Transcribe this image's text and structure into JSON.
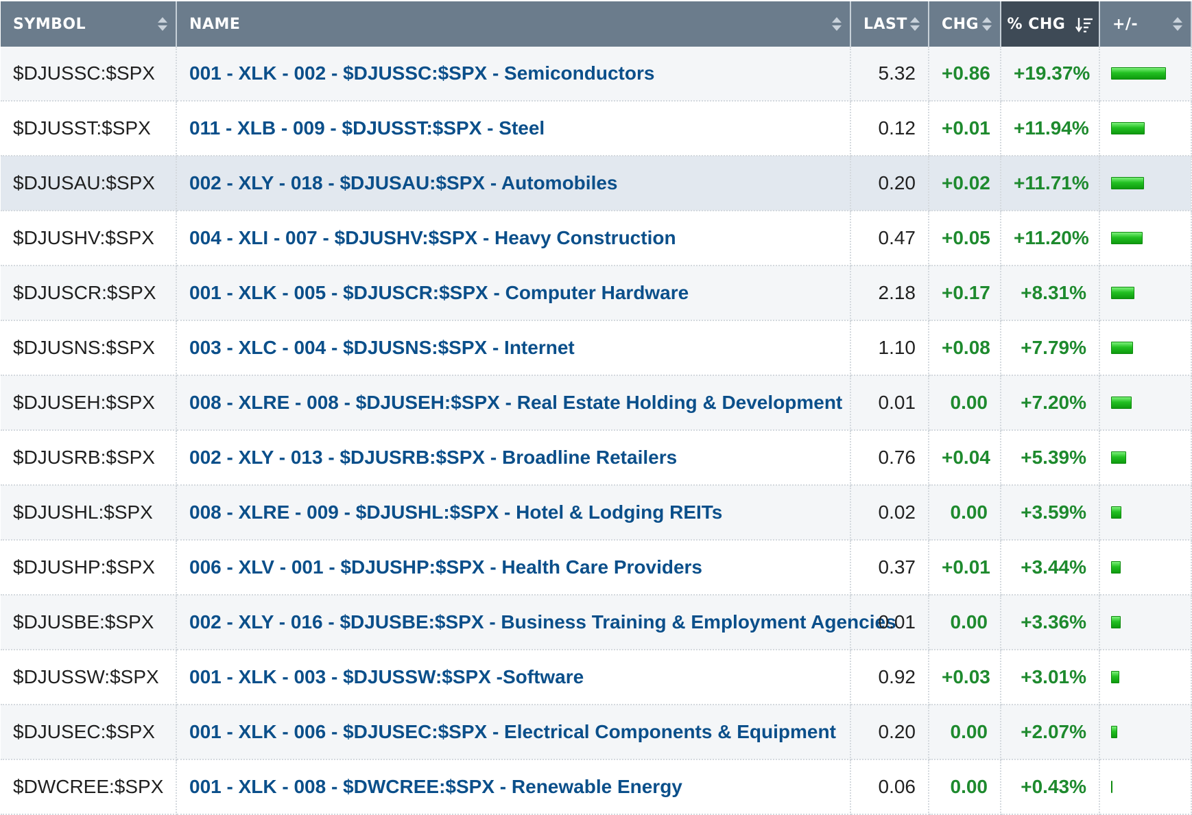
{
  "headers": {
    "symbol": "SYMBOL",
    "name": "NAME",
    "last": "LAST",
    "chg": "CHG",
    "pct_chg": "% CHG",
    "plus_minus": "+/-"
  },
  "colors": {
    "header_bg": "#6b7c8c",
    "header_sorted_bg": "#3e4a56",
    "link": "#0b4f8a",
    "positive": "#1e8a2e",
    "bar_green": "#22c022"
  },
  "rows": [
    {
      "symbol": "$DJUSSC:$SPX",
      "name": "001 - XLK - 002 - $DJUSSC:$SPX - Semiconductors",
      "last": "5.32",
      "chg": "+0.86",
      "pct": "+19.37%",
      "bar_pct": 19.37
    },
    {
      "symbol": "$DJUSST:$SPX",
      "name": "011 - XLB - 009 - $DJUSST:$SPX - Steel",
      "last": "0.12",
      "chg": "+0.01",
      "pct": "+11.94%",
      "bar_pct": 11.94
    },
    {
      "symbol": "$DJUSAU:$SPX",
      "name": "002 - XLY - 018 - $DJUSAU:$SPX - Automobiles",
      "last": "0.20",
      "chg": "+0.02",
      "pct": "+11.71%",
      "bar_pct": 11.71
    },
    {
      "symbol": "$DJUSHV:$SPX",
      "name": "004 - XLI - 007 - $DJUSHV:$SPX - Heavy Construction",
      "last": "0.47",
      "chg": "+0.05",
      "pct": "+11.20%",
      "bar_pct": 11.2
    },
    {
      "symbol": "$DJUSCR:$SPX",
      "name": "001 - XLK - 005 - $DJUSCR:$SPX - Computer Hardware",
      "last": "2.18",
      "chg": "+0.17",
      "pct": "+8.31%",
      "bar_pct": 8.31
    },
    {
      "symbol": "$DJUSNS:$SPX",
      "name": "003 - XLC - 004 - $DJUSNS:$SPX - Internet",
      "last": "1.10",
      "chg": "+0.08",
      "pct": "+7.79%",
      "bar_pct": 7.79
    },
    {
      "symbol": "$DJUSEH:$SPX",
      "name": "008 - XLRE - 008 - $DJUSEH:$SPX - Real Estate Holding & Development",
      "last": "0.01",
      "chg": "0.00",
      "pct": "+7.20%",
      "bar_pct": 7.2
    },
    {
      "symbol": "$DJUSRB:$SPX",
      "name": "002 - XLY - 013 - $DJUSRB:$SPX - Broadline Retailers",
      "last": "0.76",
      "chg": "+0.04",
      "pct": "+5.39%",
      "bar_pct": 5.39
    },
    {
      "symbol": "$DJUSHL:$SPX",
      "name": "008 - XLRE - 009 - $DJUSHL:$SPX - Hotel & Lodging REITs",
      "last": "0.02",
      "chg": "0.00",
      "pct": "+3.59%",
      "bar_pct": 3.59
    },
    {
      "symbol": "$DJUSHP:$SPX",
      "name": "006 - XLV - 001 - $DJUSHP:$SPX - Health Care Providers",
      "last": "0.37",
      "chg": "+0.01",
      "pct": "+3.44%",
      "bar_pct": 3.44
    },
    {
      "symbol": "$DJUSBE:$SPX",
      "name": "002 - XLY - 016 - $DJUSBE:$SPX - Business Training & Employment Agencies",
      "last": "0.01",
      "chg": "0.00",
      "pct": "+3.36%",
      "bar_pct": 3.36
    },
    {
      "symbol": "$DJUSSW:$SPX",
      "name": "001 - XLK - 003 - $DJUSSW:$SPX -Software",
      "last": "0.92",
      "chg": "+0.03",
      "pct": "+3.01%",
      "bar_pct": 3.01
    },
    {
      "symbol": "$DJUSEC:$SPX",
      "name": "001 - XLK - 006 - $DJUSEC:$SPX - Electrical Components & Equipment",
      "last": "0.20",
      "chg": "0.00",
      "pct": "+2.07%",
      "bar_pct": 2.07
    },
    {
      "symbol": "$DWCREE:$SPX",
      "name": "001 - XLK - 008 - $DWCREE:$SPX - Renewable Energy",
      "last": "0.06",
      "chg": "0.00",
      "pct": "+0.43%",
      "bar_pct": 0.43
    }
  ]
}
